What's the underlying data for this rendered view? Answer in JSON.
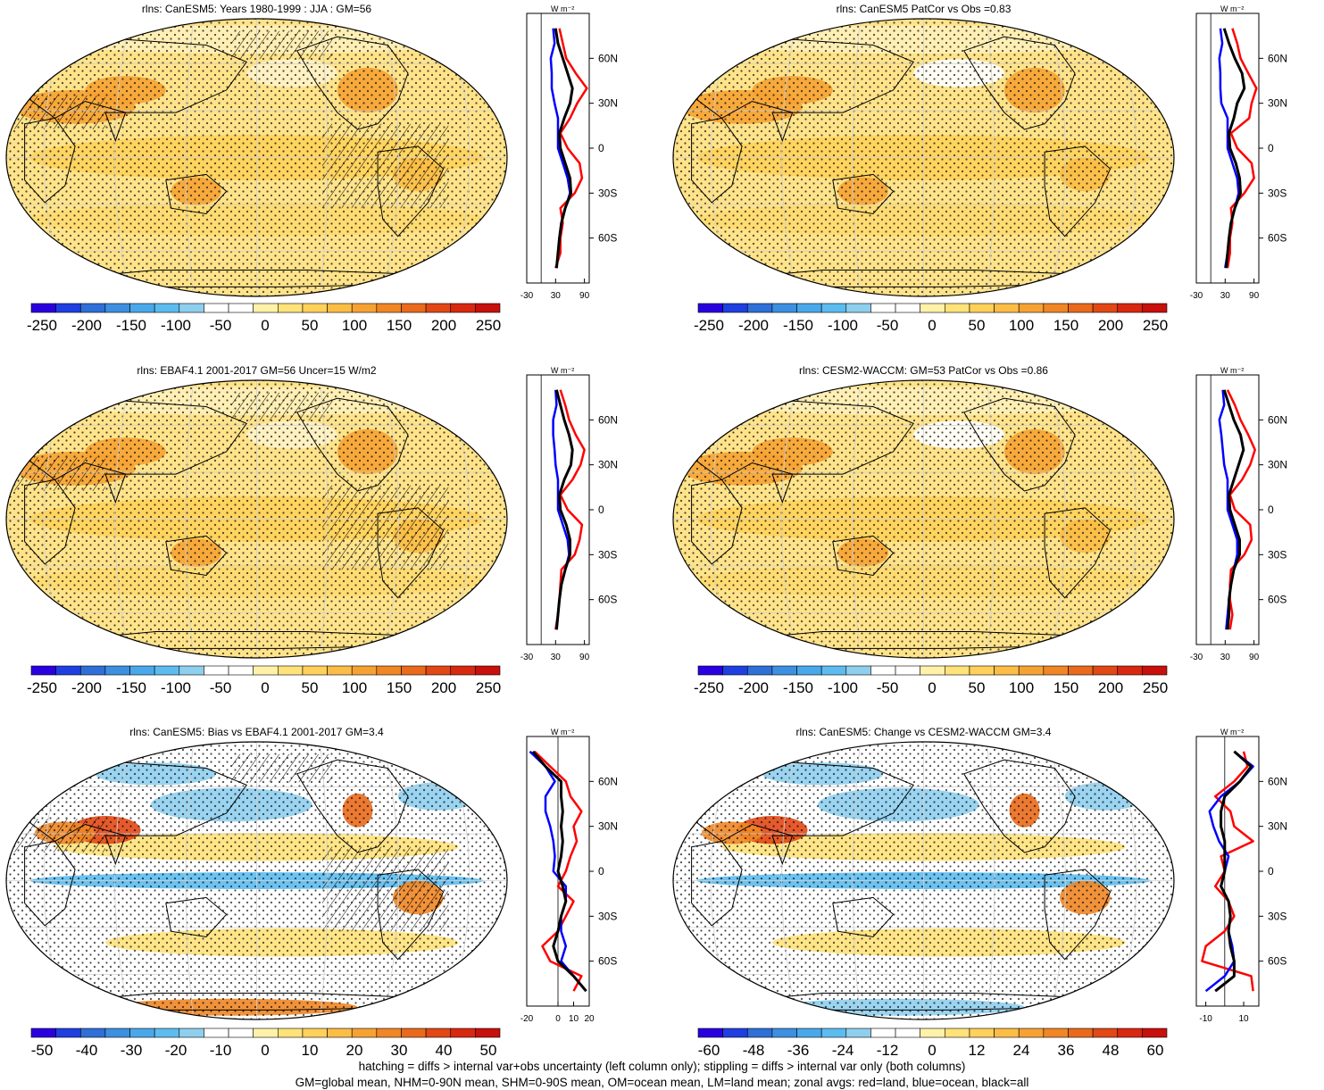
{
  "zonal_axis": {
    "unit_label": "W m⁻²",
    "lat_ticks": [
      "60N",
      "30N",
      "0",
      "30S",
      "60S"
    ]
  },
  "panels": [
    {
      "title": "rlns: CanESM5: Years 1980-1999 : JJA : GM=56",
      "map_style": "abs-a",
      "colorbar": [
        "-250",
        "-200",
        "-150",
        "-100",
        "-50",
        "0",
        "50",
        "100",
        "150",
        "200",
        "250"
      ],
      "zonal_xticks": [
        "-30",
        "30",
        "90"
      ]
    },
    {
      "title": "rlns: CanESM5 PatCor vs Obs =0.83",
      "map_style": "abs-b",
      "colorbar": [
        "-250",
        "-200",
        "-150",
        "-100",
        "-50",
        "0",
        "50",
        "100",
        "150",
        "200",
        "250"
      ],
      "zonal_xticks": [
        "-30",
        "30",
        "90"
      ]
    },
    {
      "title": "rlns: EBAF4.1 2001-2017 GM=56 Uncer=15 W/m2",
      "map_style": "abs-a",
      "colorbar": [
        "-250",
        "-200",
        "-150",
        "-100",
        "-50",
        "0",
        "50",
        "100",
        "150",
        "200",
        "250"
      ],
      "zonal_xticks": [
        "-30",
        "30",
        "90"
      ]
    },
    {
      "title": "rlns: CESM2-WACCM: GM=53 PatCor vs Obs =0.86",
      "map_style": "abs-b",
      "colorbar": [
        "-250",
        "-200",
        "-150",
        "-100",
        "-50",
        "0",
        "50",
        "100",
        "150",
        "200",
        "250"
      ],
      "zonal_xticks": [
        "-30",
        "30",
        "90"
      ]
    },
    {
      "title": "rlns: CanESM5: Bias vs EBAF4.1 2001-2017 GM=3.4",
      "map_style": "diff-a",
      "colorbar": [
        "-50",
        "-40",
        "-30",
        "-20",
        "-10",
        "0",
        "10",
        "20",
        "30",
        "40",
        "50"
      ],
      "zonal_xticks": [
        "-20",
        "0",
        "10",
        "20"
      ]
    },
    {
      "title": "rlns: CanESM5: Change vs CESM2-WACCM GM=3.4",
      "map_style": "diff-b",
      "colorbar": [
        "-60",
        "-48",
        "-36",
        "-24",
        "-12",
        "0",
        "12",
        "24",
        "36",
        "48",
        "60"
      ],
      "zonal_xticks": [
        "-10",
        "10"
      ]
    }
  ],
  "footer": {
    "line1": "hatching = diffs > internal var+obs uncertainty (left column only); stippling = diffs > internal var only (both columns)",
    "line2": "GM=global mean, NHM=0-90N mean, SHM=0-90S mean, OM=ocean mean, LM=land mean; zonal avgs: red=land, blue=ocean, black=all"
  },
  "colors": {
    "scale": [
      "#2a00e0",
      "#1f3fe0",
      "#2f6fd8",
      "#3d8fe0",
      "#49a8ea",
      "#5cbcf0",
      "#8fcfee",
      "#ffffff",
      "#ffffff",
      "#fff2a8",
      "#ffe27a",
      "#ffd15a",
      "#fbbd45",
      "#f6a233",
      "#f08625",
      "#ea6a1b",
      "#e24815",
      "#d82810",
      "#c8100c"
    ],
    "land_line": "#ff0000",
    "ocean_line": "#0000ff",
    "all_line": "#000000"
  },
  "chart_data": [
    {
      "type": "line",
      "title": "rlns: CanESM5: Years 1980-1999 : JJA : GM=56",
      "xlabel": "W m-2",
      "ylabel": "",
      "xlim": [
        -30,
        100
      ],
      "ylim": [
        -90,
        90
      ],
      "y": [
        80,
        70,
        60,
        50,
        40,
        30,
        20,
        10,
        0,
        -10,
        -20,
        -30,
        -40,
        -50,
        -60,
        -70,
        -80
      ],
      "series": [
        {
          "name": "land",
          "values": [
            38,
            45,
            52,
            72,
            95,
            75,
            60,
            40,
            55,
            80,
            85,
            70,
            40,
            45,
            40,
            40,
            30
          ]
        },
        {
          "name": "ocean",
          "values": [
            25,
            28,
            20,
            22,
            22,
            28,
            35,
            35,
            35,
            45,
            55,
            60,
            50,
            42,
            38,
            35,
            32
          ]
        },
        {
          "name": "all",
          "values": [
            30,
            35,
            45,
            55,
            65,
            60,
            48,
            38,
            40,
            50,
            60,
            62,
            50,
            42,
            38,
            35,
            32
          ]
        }
      ]
    },
    {
      "type": "line",
      "title": "rlns: CanESM5 PatCor vs Obs =0.83",
      "xlabel": "W m-2",
      "ylabel": "",
      "xlim": [
        -30,
        100
      ],
      "ylim": [
        -90,
        90
      ],
      "y": [
        80,
        70,
        60,
        50,
        40,
        30,
        20,
        10,
        0,
        -10,
        -20,
        -30,
        -40,
        -50,
        -60,
        -70,
        -80
      ],
      "series": [
        {
          "name": "land",
          "values": [
            45,
            55,
            62,
            78,
            95,
            85,
            80,
            42,
            55,
            85,
            90,
            70,
            42,
            45,
            40,
            40,
            35
          ]
        },
        {
          "name": "ocean",
          "values": [
            20,
            24,
            18,
            20,
            20,
            22,
            35,
            35,
            35,
            45,
            55,
            58,
            50,
            42,
            38,
            35,
            30
          ]
        },
        {
          "name": "all",
          "values": [
            28,
            38,
            50,
            65,
            70,
            55,
            48,
            38,
            40,
            52,
            60,
            62,
            50,
            42,
            38,
            35,
            32
          ]
        }
      ]
    },
    {
      "type": "line",
      "title": "rlns: EBAF4.1 2001-2017 GM=56 Uncer=15 W/m2",
      "xlabel": "W m-2",
      "ylabel": "",
      "xlim": [
        -30,
        100
      ],
      "ylim": [
        -90,
        90
      ],
      "y": [
        80,
        70,
        60,
        50,
        40,
        30,
        20,
        10,
        0,
        -10,
        -20,
        -30,
        -40,
        -50,
        -60,
        -70,
        -80
      ],
      "series": [
        {
          "name": "land",
          "values": [
            40,
            50,
            58,
            72,
            90,
            82,
            65,
            40,
            55,
            85,
            80,
            70,
            42,
            40,
            38,
            35,
            30
          ]
        },
        {
          "name": "ocean",
          "values": [
            30,
            32,
            25,
            25,
            28,
            30,
            35,
            35,
            35,
            45,
            55,
            58,
            50,
            42,
            38,
            35,
            32
          ]
        },
        {
          "name": "all",
          "values": [
            32,
            40,
            48,
            58,
            65,
            62,
            48,
            38,
            40,
            52,
            60,
            60,
            50,
            42,
            38,
            35,
            32
          ]
        }
      ]
    },
    {
      "type": "line",
      "title": "rlns: CESM2-WACCM: GM=53 PatCor vs Obs =0.86",
      "xlabel": "W m-2",
      "ylabel": "",
      "xlim": [
        -30,
        100
      ],
      "ylim": [
        -90,
        90
      ],
      "y": [
        80,
        70,
        60,
        50,
        40,
        30,
        20,
        10,
        0,
        -10,
        -20,
        -30,
        -40,
        -50,
        -60,
        -70,
        -80
      ],
      "series": [
        {
          "name": "land",
          "values": [
            35,
            50,
            62,
            78,
            92,
            82,
            65,
            40,
            50,
            82,
            85,
            70,
            42,
            40,
            40,
            45,
            40
          ]
        },
        {
          "name": "ocean",
          "values": [
            25,
            28,
            18,
            22,
            25,
            28,
            35,
            35,
            35,
            45,
            55,
            55,
            48,
            42,
            38,
            35,
            32
          ]
        },
        {
          "name": "all",
          "values": [
            28,
            38,
            48,
            62,
            68,
            58,
            48,
            38,
            40,
            50,
            60,
            60,
            48,
            42,
            38,
            38,
            35
          ]
        }
      ]
    },
    {
      "type": "line",
      "title": "rlns: CanESM5: Bias vs EBAF4.1 2001-2017 GM=3.4",
      "xlabel": "W m-2",
      "ylabel": "",
      "xlim": [
        -20,
        20
      ],
      "ylim": [
        -90,
        90
      ],
      "y": [
        80,
        70,
        60,
        50,
        40,
        30,
        20,
        10,
        0,
        -10,
        -20,
        -30,
        -40,
        -50,
        -60,
        -70,
        -80
      ],
      "series": [
        {
          "name": "land",
          "values": [
            -15,
            -5,
            5,
            8,
            15,
            10,
            12,
            8,
            5,
            0,
            10,
            5,
            0,
            -10,
            -5,
            15,
            10
          ]
        },
        {
          "name": "ocean",
          "values": [
            -18,
            -8,
            -2,
            -8,
            -8,
            -5,
            -3,
            -2,
            -3,
            5,
            5,
            2,
            2,
            5,
            2,
            10,
            18
          ]
        },
        {
          "name": "all",
          "values": [
            -16,
            -8,
            2,
            2,
            3,
            2,
            3,
            2,
            0,
            3,
            5,
            2,
            0,
            -3,
            0,
            10,
            18
          ]
        }
      ]
    },
    {
      "type": "line",
      "title": "rlns: CanESM5: Change vs CESM2-WACCM GM=3.4",
      "xlabel": "W m-2",
      "ylabel": "",
      "xlim": [
        -15,
        18
      ],
      "ylim": [
        -90,
        90
      ],
      "y": [
        80,
        70,
        60,
        50,
        40,
        30,
        20,
        10,
        0,
        -10,
        -20,
        -30,
        -40,
        -50,
        -60,
        -70,
        -80
      ],
      "series": [
        {
          "name": "land",
          "values": [
            10,
            12,
            5,
            -5,
            3,
            5,
            15,
            -2,
            0,
            -5,
            2,
            5,
            0,
            -10,
            -12,
            14,
            15
          ]
        },
        {
          "name": "ocean",
          "values": [
            5,
            15,
            8,
            -2,
            -8,
            -6,
            -3,
            2,
            0,
            -2,
            2,
            3,
            2,
            4,
            5,
            0,
            -10
          ]
        },
        {
          "name": "all",
          "values": [
            5,
            14,
            8,
            0,
            -2,
            -2,
            0,
            0,
            0,
            -2,
            2,
            3,
            2,
            3,
            5,
            5,
            -5
          ]
        }
      ]
    }
  ]
}
